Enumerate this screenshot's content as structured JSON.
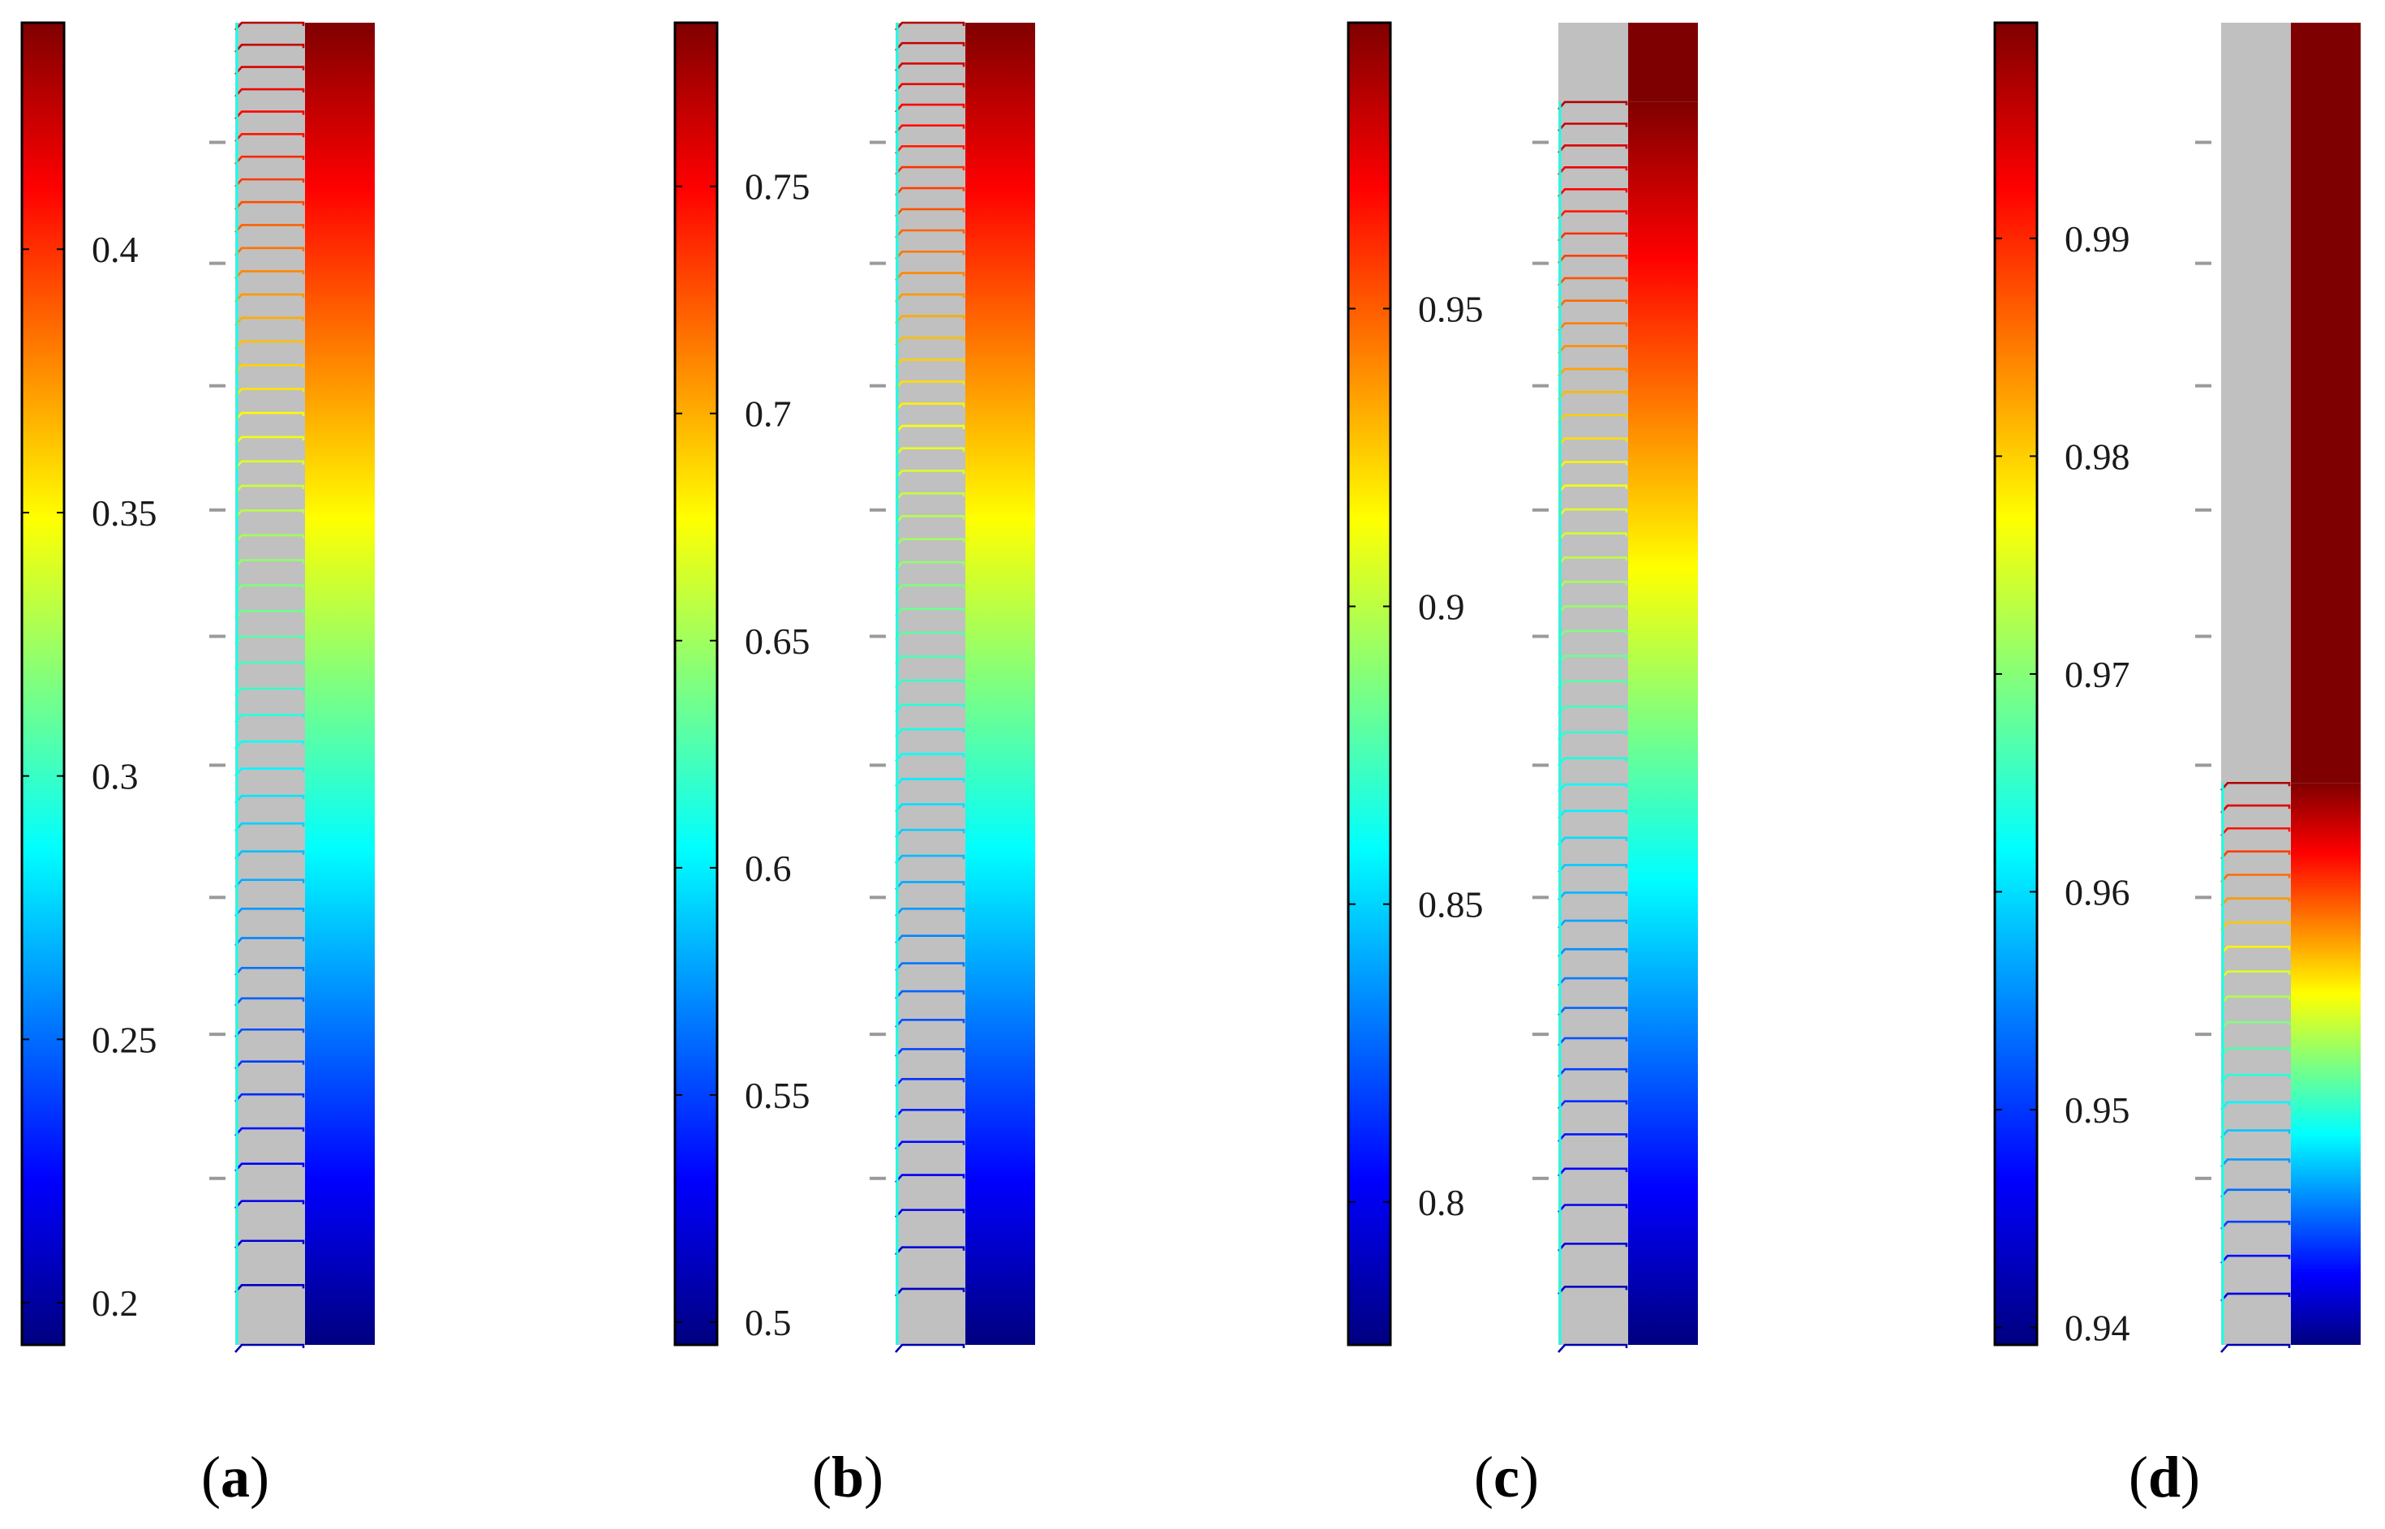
{
  "colormap": [
    "#00007f",
    "#0000ff",
    "#007fff",
    "#00ffff",
    "#7fff7f",
    "#ffff00",
    "#ff7f00",
    "#ff0000",
    "#7f0000"
  ],
  "panels": [
    {
      "id": "a",
      "label": "a",
      "colorbar": {
        "min": 0.192,
        "max": 0.443,
        "ticks": [
          {
            "value": 0.2,
            "label": "0.2"
          },
          {
            "value": 0.25,
            "label": "0.25"
          },
          {
            "value": 0.3,
            "label": "0.3"
          },
          {
            "value": 0.35,
            "label": "0.35"
          },
          {
            "value": 0.4,
            "label": "0.4"
          }
        ]
      },
      "solid_fraction": 1.0,
      "contour_count": 48
    },
    {
      "id": "b",
      "label": "b",
      "colorbar": {
        "min": 0.495,
        "max": 0.786,
        "ticks": [
          {
            "value": 0.5,
            "label": "0.5"
          },
          {
            "value": 0.55,
            "label": "0.55"
          },
          {
            "value": 0.6,
            "label": "0.6"
          },
          {
            "value": 0.65,
            "label": "0.65"
          },
          {
            "value": 0.7,
            "label": "0.7"
          },
          {
            "value": 0.75,
            "label": "0.75"
          }
        ]
      },
      "solid_fraction": 1.0,
      "contour_count": 52
    },
    {
      "id": "c",
      "label": "c",
      "colorbar": {
        "min": 0.776,
        "max": 0.998,
        "ticks": [
          {
            "value": 0.8,
            "label": "0.8"
          },
          {
            "value": 0.85,
            "label": "0.85"
          },
          {
            "value": 0.9,
            "label": "0.9"
          },
          {
            "value": 0.95,
            "label": "0.95"
          }
        ]
      },
      "solid_fraction": 0.94,
      "contour_count": 46
    },
    {
      "id": "d",
      "label": "d",
      "colorbar": {
        "min": 0.9392,
        "max": 0.9999,
        "ticks": [
          {
            "value": 0.94,
            "label": "0.94"
          },
          {
            "value": 0.95,
            "label": "0.95"
          },
          {
            "value": 0.96,
            "label": "0.96"
          },
          {
            "value": 0.97,
            "label": "0.97"
          },
          {
            "value": 0.98,
            "label": "0.98"
          },
          {
            "value": 0.99,
            "label": "0.99"
          }
        ]
      },
      "solid_fraction": 0.425,
      "contour_count": 20
    }
  ]
}
